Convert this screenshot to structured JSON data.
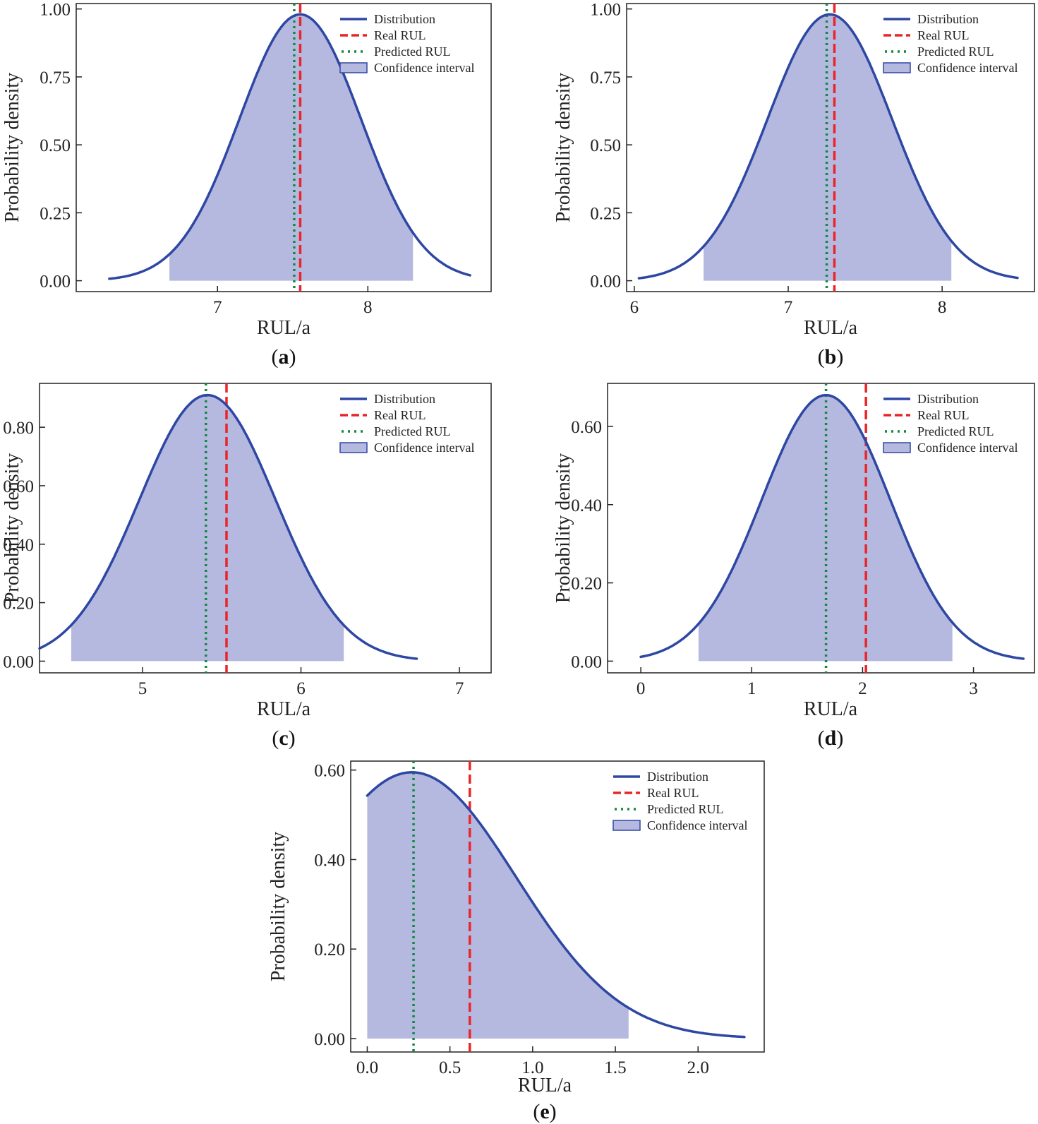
{
  "colors": {
    "distribution": "#2e47a3",
    "real": "#e8262a",
    "predicted": "#13883f",
    "ci_fill": "#b5b9e0",
    "ci_edge": "#2e47a3"
  },
  "legend": {
    "distribution": "Distribution",
    "real": "Real RUL",
    "predicted": "Predicted RUL",
    "ci": "Confidence interval"
  },
  "chart_data": [
    {
      "panel": "a",
      "type": "line",
      "xlabel": "RUL/a",
      "ylabel": "Probability density",
      "xlim": [
        6.06,
        8.82
      ],
      "ylim": [
        -0.04,
        1.02
      ],
      "xticks": [
        "7",
        "8"
      ],
      "xtick_values": [
        7,
        8
      ],
      "yticks": [
        "0.00",
        "0.25",
        "0.50",
        "0.75",
        "1.00"
      ],
      "ytick_values": [
        0,
        0.25,
        0.5,
        0.75,
        1.0
      ],
      "dist": {
        "kind": "normal",
        "mean": 7.55,
        "sd": 0.405,
        "peak": 0.98,
        "range": [
          6.28,
          8.68
        ]
      },
      "ci": [
        6.68,
        8.3
      ],
      "real_rul": 7.55,
      "predicted_rul": 7.51
    },
    {
      "panel": "b",
      "type": "line",
      "xlabel": "RUL/a",
      "ylabel": "Probability density",
      "xlim": [
        5.95,
        8.6
      ],
      "ylim": [
        -0.04,
        1.02
      ],
      "xticks": [
        "6",
        "7",
        "8"
      ],
      "xtick_values": [
        6,
        7,
        8
      ],
      "yticks": [
        "0.00",
        "0.25",
        "0.50",
        "0.75",
        "1.00"
      ],
      "ytick_values": [
        0,
        0.25,
        0.5,
        0.75,
        1.0
      ],
      "dist": {
        "kind": "normal",
        "mean": 7.27,
        "sd": 0.405,
        "peak": 0.98,
        "range": [
          6.03,
          8.49
        ]
      },
      "ci": [
        6.45,
        8.06
      ],
      "real_rul": 7.3,
      "predicted_rul": 7.25
    },
    {
      "panel": "c",
      "type": "line",
      "xlabel": "RUL/a",
      "ylabel": "Probability density",
      "xlim": [
        4.35,
        7.2
      ],
      "ylim": [
        -0.04,
        0.95
      ],
      "xticks": [
        "5",
        "6",
        "7"
      ],
      "xtick_values": [
        5,
        6,
        7
      ],
      "yticks": [
        "0.00",
        "0.20",
        "0.40",
        "0.60",
        "0.80"
      ],
      "ytick_values": [
        0,
        0.2,
        0.4,
        0.6,
        0.8
      ],
      "dist": {
        "kind": "normal",
        "mean": 5.41,
        "sd": 0.43,
        "peak": 0.91,
        "range": [
          4.35,
          6.73
        ]
      },
      "ci": [
        4.55,
        6.27
      ],
      "real_rul": 5.53,
      "predicted_rul": 5.4
    },
    {
      "panel": "d",
      "type": "line",
      "xlabel": "RUL/a",
      "ylabel": "Probability density",
      "xlim": [
        -0.3,
        3.55
      ],
      "ylim": [
        -0.03,
        0.71
      ],
      "xticks": [
        "0",
        "1",
        "2",
        "3"
      ],
      "xtick_values": [
        0,
        1,
        2,
        3
      ],
      "yticks": [
        "0.00",
        "0.20",
        "0.40",
        "0.60"
      ],
      "ytick_values": [
        0,
        0.2,
        0.4,
        0.6
      ],
      "dist": {
        "kind": "normal",
        "mean": 1.67,
        "sd": 0.58,
        "peak": 0.68,
        "range": [
          0.0,
          3.45
        ]
      },
      "ci": [
        0.52,
        2.81
      ],
      "real_rul": 2.03,
      "predicted_rul": 1.67
    },
    {
      "panel": "e",
      "type": "line",
      "xlabel": "RUL/a",
      "ylabel": "Probability density",
      "xlim": [
        -0.1,
        2.4
      ],
      "ylim": [
        -0.03,
        0.62
      ],
      "xticks": [
        "0.0",
        "0.5",
        "1.0",
        "1.5",
        "2.0"
      ],
      "xtick_values": [
        0,
        0.5,
        1.0,
        1.5,
        2.0
      ],
      "yticks": [
        "0.00",
        "0.20",
        "0.40",
        "0.60"
      ],
      "ytick_values": [
        0,
        0.2,
        0.4,
        0.6
      ],
      "dist": {
        "kind": "normal",
        "mean": 0.27,
        "sd": 0.63,
        "peak": 0.595,
        "range": [
          0.0,
          2.28
        ]
      },
      "ci": [
        0.0,
        1.58
      ],
      "real_rul": 0.62,
      "predicted_rul": 0.28
    }
  ]
}
